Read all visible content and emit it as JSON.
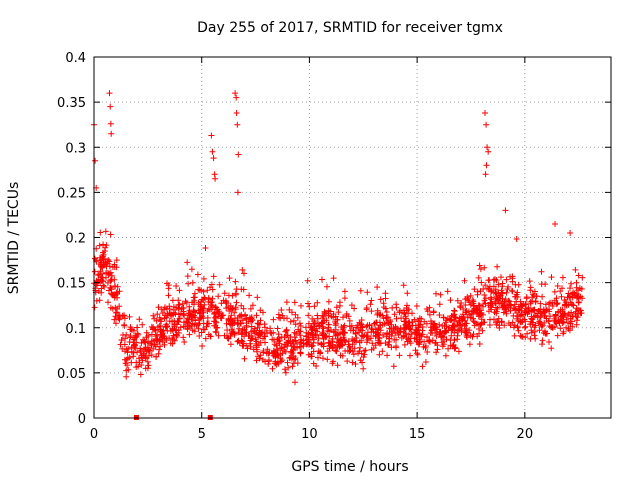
{
  "chart_data": {
    "type": "scatter",
    "title": "Day 255 of 2017, SRMTID for receiver tgmx",
    "xlabel": "GPS time / hours",
    "ylabel": "SRMTID / TECUs",
    "xlim": [
      0,
      24
    ],
    "ylim": [
      0,
      0.4
    ],
    "xticks": [
      0,
      5,
      10,
      15,
      20
    ],
    "xtick_labels": [
      "0",
      "5",
      "10",
      "15",
      "20"
    ],
    "yticks": [
      0,
      0.05,
      0.1,
      0.15,
      0.2,
      0.25,
      0.3,
      0.35,
      0.4
    ],
    "ytick_labels": [
      "0",
      "0.05",
      "0.1",
      "0.15",
      "0.2",
      "0.25",
      "0.3",
      "0.35",
      "0.4"
    ],
    "grid": true,
    "marker": "plus",
    "marker_color": "#ff0000",
    "series_color": "#ff0000",
    "square_markers_y0": [
      1.97,
      5.4
    ],
    "x_data_range": [
      0,
      22.7
    ],
    "baseline_profile": [
      [
        0.0,
        0.15
      ],
      [
        0.5,
        0.17
      ],
      [
        1.0,
        0.13
      ],
      [
        1.5,
        0.08
      ],
      [
        2.5,
        0.075
      ],
      [
        3.5,
        0.11
      ],
      [
        4.5,
        0.11
      ],
      [
        5.5,
        0.12
      ],
      [
        6.5,
        0.11
      ],
      [
        7.5,
        0.09
      ],
      [
        8.5,
        0.08
      ],
      [
        9.5,
        0.085
      ],
      [
        10.5,
        0.095
      ],
      [
        11.5,
        0.09
      ],
      [
        12.5,
        0.09
      ],
      [
        13.5,
        0.1
      ],
      [
        14.5,
        0.1
      ],
      [
        15.5,
        0.095
      ],
      [
        16.5,
        0.1
      ],
      [
        17.5,
        0.11
      ],
      [
        18.5,
        0.13
      ],
      [
        19.5,
        0.12
      ],
      [
        20.5,
        0.11
      ],
      [
        21.5,
        0.11
      ],
      [
        22.5,
        0.13
      ]
    ],
    "spikes": [
      {
        "x": 0.0,
        "y": 0.325
      },
      {
        "x": 0.05,
        "y": 0.285
      },
      {
        "x": 0.1,
        "y": 0.255
      },
      {
        "x": 0.72,
        "y": 0.36
      },
      {
        "x": 0.75,
        "y": 0.345
      },
      {
        "x": 0.78,
        "y": 0.326
      },
      {
        "x": 0.8,
        "y": 0.315
      },
      {
        "x": 5.45,
        "y": 0.313
      },
      {
        "x": 5.5,
        "y": 0.295
      },
      {
        "x": 5.55,
        "y": 0.288
      },
      {
        "x": 5.6,
        "y": 0.27
      },
      {
        "x": 5.62,
        "y": 0.265
      },
      {
        "x": 6.55,
        "y": 0.36
      },
      {
        "x": 6.6,
        "y": 0.355
      },
      {
        "x": 6.62,
        "y": 0.338
      },
      {
        "x": 6.65,
        "y": 0.325
      },
      {
        "x": 6.7,
        "y": 0.292
      },
      {
        "x": 6.68,
        "y": 0.25
      },
      {
        "x": 18.15,
        "y": 0.338
      },
      {
        "x": 18.2,
        "y": 0.325
      },
      {
        "x": 18.25,
        "y": 0.3
      },
      {
        "x": 18.22,
        "y": 0.28
      },
      {
        "x": 18.18,
        "y": 0.27
      },
      {
        "x": 18.3,
        "y": 0.295
      },
      {
        "x": 19.1,
        "y": 0.23
      },
      {
        "x": 21.4,
        "y": 0.215
      },
      {
        "x": 22.1,
        "y": 0.205
      }
    ]
  }
}
